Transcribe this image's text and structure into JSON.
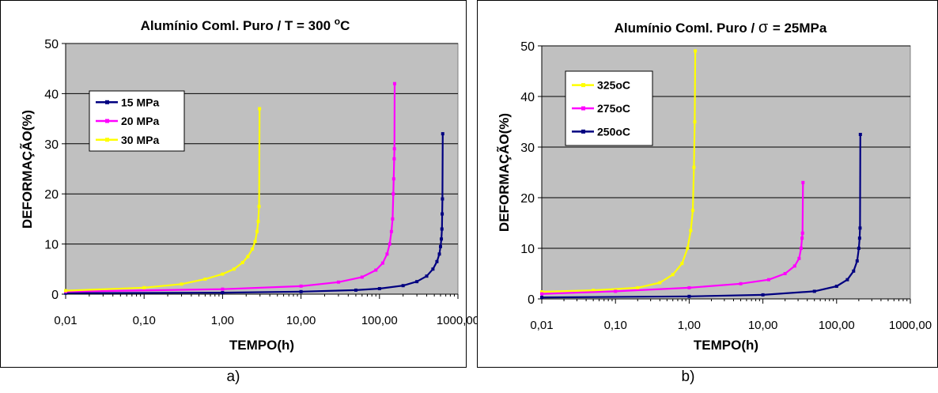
{
  "chart_data": [
    {
      "type": "line",
      "title": "Alumínio Coml. Puro /  T  =  300",
      "title_sup": "o",
      "title_suffix": "C",
      "xlabel": "TEMPO(h)",
      "ylabel": "DEFORMAÇÃO(%)",
      "x_scale": "log",
      "xlim": [
        0.01,
        1000
      ],
      "ylim": [
        0,
        50
      ],
      "x_tick_values": [
        0.01,
        0.1,
        1,
        10,
        100,
        1000
      ],
      "x_tick_labels": [
        "0,01",
        "0,10",
        "1,00",
        "10,00",
        "100,00",
        "1000,00"
      ],
      "y_ticks": [
        0,
        10,
        20,
        30,
        40,
        50
      ],
      "grid": "horizontal",
      "plot_background": "#c0c0c0",
      "legend_position": "top-left",
      "series": [
        {
          "name": "15 MPa",
          "color": "#000080",
          "x": [
            0.01,
            1,
            10,
            50,
            100,
            200,
            300,
            400,
            480,
            540,
            580,
            600,
            615,
            625,
            630,
            635,
            640
          ],
          "y": [
            0.2,
            0.3,
            0.5,
            0.8,
            1.1,
            1.7,
            2.5,
            3.6,
            5,
            6.5,
            8,
            9.5,
            11,
            13,
            16,
            19,
            32
          ]
        },
        {
          "name": "20 MPa",
          "color": "#ff00ff",
          "x": [
            0.01,
            1,
            10,
            30,
            60,
            90,
            110,
            125,
            135,
            142,
            147,
            150,
            152,
            154,
            155,
            156
          ],
          "y": [
            0.5,
            1,
            1.6,
            2.4,
            3.4,
            4.8,
            6.2,
            8,
            10,
            12.5,
            15,
            20,
            23,
            27,
            29,
            42
          ]
        },
        {
          "name": "30 MPa",
          "color": "#ffff00",
          "x": [
            0.01,
            0.1,
            0.3,
            0.6,
            1,
            1.4,
            1.8,
            2.1,
            2.4,
            2.6,
            2.75,
            2.85,
            2.92,
            2.96
          ],
          "y": [
            0.7,
            1.3,
            2,
            3,
            4,
            5,
            6.3,
            7.5,
            9,
            10.5,
            12.5,
            14.5,
            17.5,
            37
          ]
        }
      ]
    },
    {
      "type": "line",
      "title": "Alumínio Coml. Puro /",
      "title_symbol": "σ",
      "title_suffix": "=  25MPa",
      "xlabel": "TEMPO(h)",
      "ylabel": "DEFORMAÇÃO(%)",
      "x_scale": "log",
      "xlim": [
        0.01,
        1000
      ],
      "ylim": [
        0,
        50
      ],
      "x_tick_values": [
        0.01,
        0.1,
        1,
        10,
        100,
        1000
      ],
      "x_tick_labels": [
        "0,01",
        "0,10",
        "1,00",
        "10,00",
        "100,00",
        "1000,00"
      ],
      "y_ticks": [
        0,
        10,
        20,
        30,
        40,
        50
      ],
      "grid": "horizontal",
      "plot_background": "#c0c0c0",
      "legend_position": "top-left",
      "series": [
        {
          "name": "325oC",
          "color": "#ffff00",
          "x": [
            0.01,
            0.05,
            0.2,
            0.4,
            0.6,
            0.8,
            0.95,
            1.05,
            1.12,
            1.16,
            1.19,
            1.21
          ],
          "y": [
            1.4,
            1.7,
            2.2,
            3.2,
            4.8,
            7,
            10,
            13.5,
            17.5,
            26,
            35,
            49
          ]
        },
        {
          "name": "275oC",
          "color": "#ff00ff",
          "x": [
            0.01,
            0.1,
            1,
            5,
            12,
            20,
            27,
            31,
            33,
            34,
            34.5,
            35
          ],
          "y": [
            1,
            1.5,
            2.2,
            3,
            3.8,
            5,
            6.5,
            8,
            10,
            12,
            13,
            23
          ]
        },
        {
          "name": "250oC",
          "color": "#000080",
          "x": [
            0.01,
            1,
            10,
            50,
            100,
            140,
            170,
            190,
            200,
            205,
            208,
            210
          ],
          "y": [
            0.3,
            0.5,
            0.8,
            1.5,
            2.5,
            3.8,
            5.5,
            7.5,
            10,
            12,
            14,
            32.5
          ]
        }
      ]
    }
  ],
  "captions": [
    "a)",
    "b)"
  ]
}
